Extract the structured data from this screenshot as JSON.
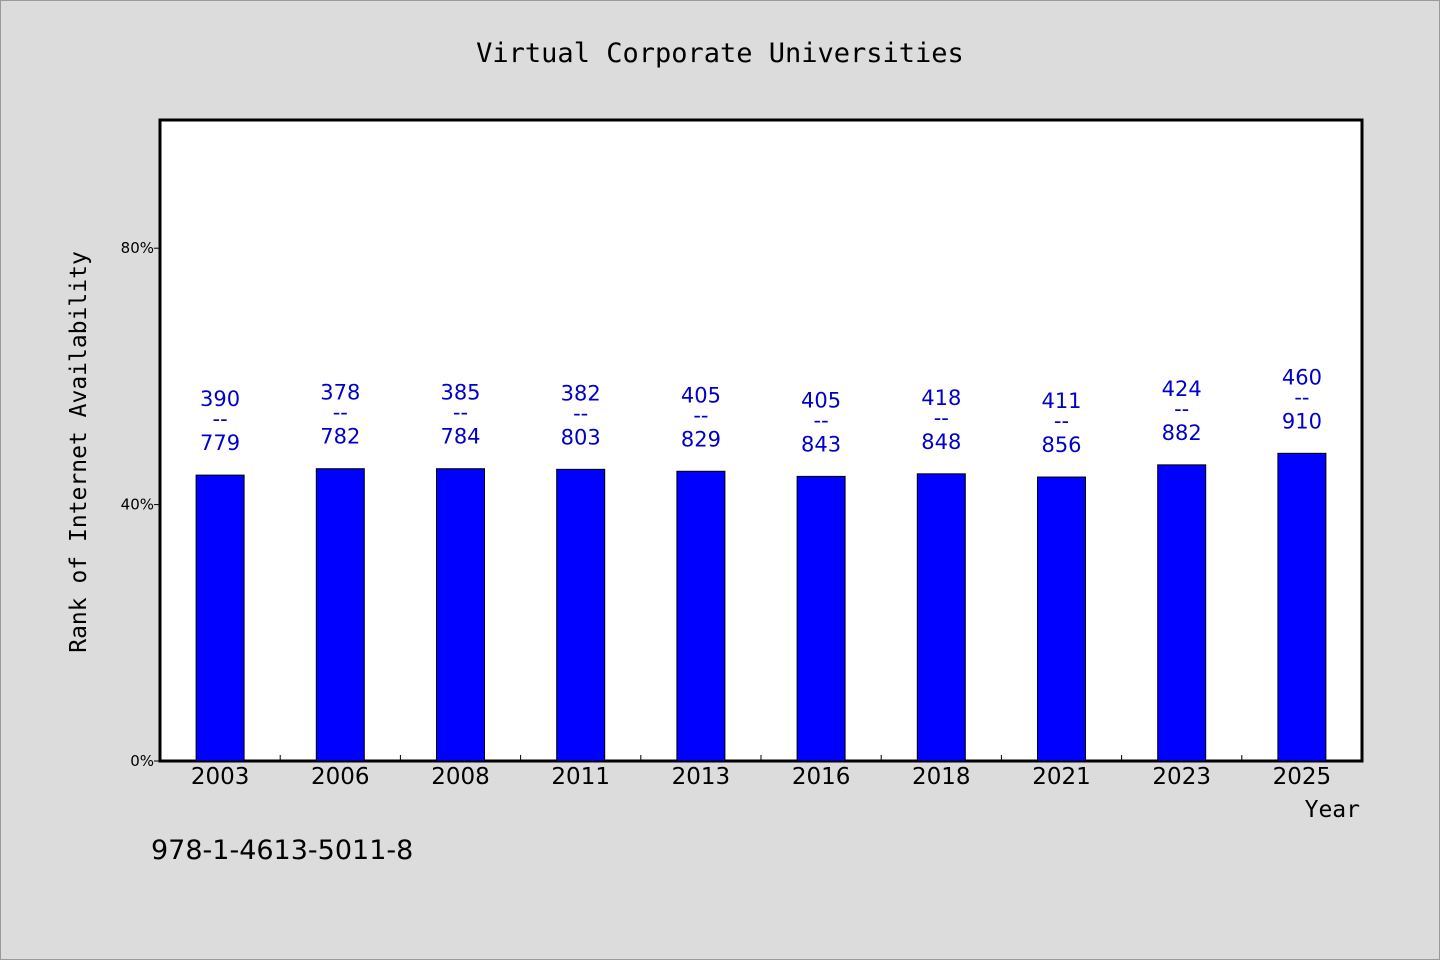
{
  "chart_data": {
    "type": "bar",
    "title": "Virtual Corporate Universities",
    "xlabel": "Year",
    "ylabel": "Rank of Internet Availability",
    "categories": [
      "2003",
      "2006",
      "2008",
      "2011",
      "2013",
      "2016",
      "2018",
      "2021",
      "2023",
      "2025"
    ],
    "values": [
      44.6,
      45.6,
      45.6,
      45.5,
      45.2,
      44.4,
      44.8,
      44.3,
      46.2,
      48.0
    ],
    "data_labels": [
      {
        "top": "390",
        "sep": "--",
        "bottom": "779"
      },
      {
        "top": "378",
        "sep": "--",
        "bottom": "782"
      },
      {
        "top": "385",
        "sep": "--",
        "bottom": "784"
      },
      {
        "top": "382",
        "sep": "--",
        "bottom": "803"
      },
      {
        "top": "405",
        "sep": "--",
        "bottom": "829"
      },
      {
        "top": "405",
        "sep": "--",
        "bottom": "843"
      },
      {
        "top": "418",
        "sep": "--",
        "bottom": "848"
      },
      {
        "top": "411",
        "sep": "--",
        "bottom": "856"
      },
      {
        "top": "424",
        "sep": "--",
        "bottom": "882"
      },
      {
        "top": "460",
        "sep": "--",
        "bottom": "910"
      }
    ],
    "yticks": [
      0,
      40,
      80
    ],
    "ytick_labels": [
      "0%",
      "40%",
      "80%"
    ],
    "ylim": [
      0,
      100
    ],
    "grid": false,
    "legend": "none",
    "bar_color": "#0000ff",
    "label_color": "#0000cc",
    "background": "#dcdcdc",
    "plot_background": "#ffffff"
  },
  "footer": {
    "isbn": "978-1-4613-5011-8"
  }
}
